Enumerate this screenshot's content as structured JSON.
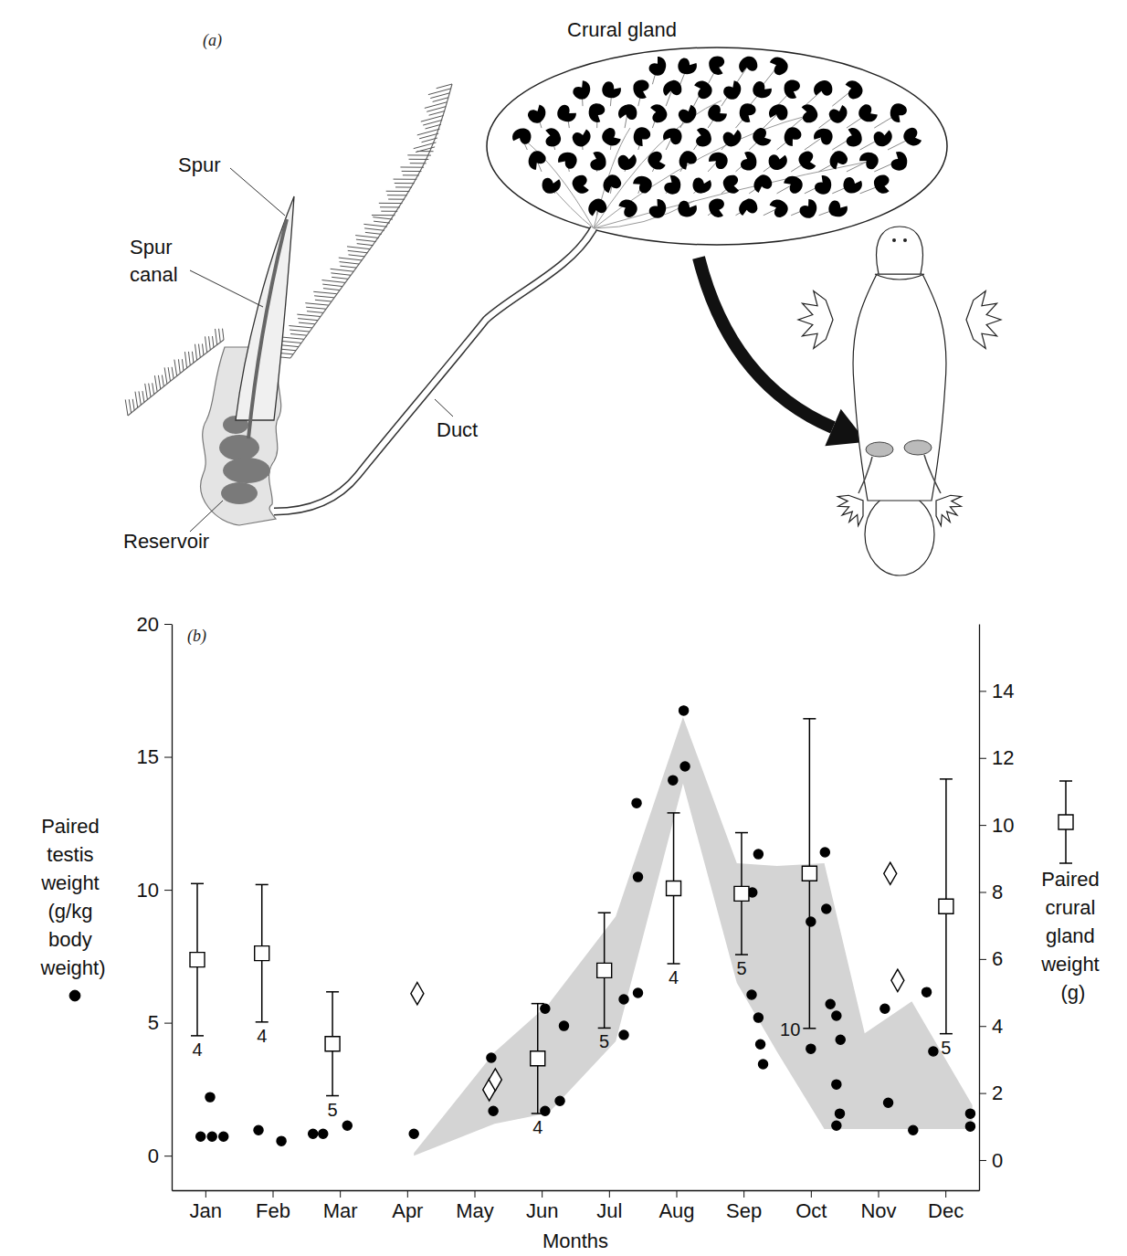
{
  "diagram": {
    "panel_label": "(a)",
    "crural_gland": "Crural gland",
    "spur": "Spur",
    "spur_canal": "Spur canal",
    "duct": "Duct",
    "reservoir": "Reservoir"
  },
  "chart_data": {
    "type": "scatter",
    "panel_label": "(b)",
    "x_label": "Months",
    "y_label": "Paired testis weight (g/kg body weight)",
    "y2_label": "Paired crural gland weight (g)",
    "xlim": [
      0,
      12
    ],
    "xticks": [
      {
        "value": 0.5,
        "label": "Jan"
      },
      {
        "value": 1.5,
        "label": "Feb"
      },
      {
        "value": 2.5,
        "label": "Mar"
      },
      {
        "value": 3.5,
        "label": "Apr"
      },
      {
        "value": 4.5,
        "label": "May"
      },
      {
        "value": 5.5,
        "label": "Jun"
      },
      {
        "value": 6.5,
        "label": "Jul"
      },
      {
        "value": 7.5,
        "label": "Aug"
      },
      {
        "value": 8.5,
        "label": "Sep"
      },
      {
        "value": 9.5,
        "label": "Oct"
      },
      {
        "value": 10.5,
        "label": "Nov"
      },
      {
        "value": 11.5,
        "label": "Dec"
      }
    ],
    "ylim": [
      -1.3,
      20
    ],
    "yticks": [
      0,
      5,
      10,
      15,
      20
    ],
    "y2lim": [
      -0.9,
      16
    ],
    "y2ticks": [
      0,
      2,
      4,
      6,
      8,
      10,
      12,
      14
    ],
    "series": [
      {
        "type": "scatter",
        "marker": "circle",
        "color": "#000000",
        "x": [
          0.43,
          0.57,
          0.6,
          0.77,
          1.29,
          1.63,
          2.1,
          2.25,
          2.61,
          3.6,
          4.75,
          4.78,
          5.55,
          5.55,
          5.77,
          5.83,
          6.72,
          6.72,
          6.91,
          6.93,
          6.93,
          7.45,
          7.61,
          7.63,
          8.62,
          8.63,
          8.72,
          8.72,
          8.75,
          8.79,
          9.5,
          9.5,
          9.71,
          9.73,
          9.79,
          9.88,
          9.88,
          9.88,
          9.93,
          9.94,
          10.6,
          10.65,
          11.02,
          11.22,
          11.32,
          11.87,
          11.87
        ],
        "values": [
          0.72,
          2.2,
          0.72,
          0.72,
          0.96,
          0.55,
          0.82,
          0.82,
          1.13,
          0.82,
          3.68,
          1.68,
          5.53,
          1.68,
          2.06,
          4.88,
          5.88,
          4.54,
          13.26,
          10.48,
          6.12,
          14.12,
          16.74,
          14.64,
          6.05,
          9.9,
          11.34,
          5.19,
          4.19,
          3.44,
          8.8,
          4.02,
          11.41,
          9.28,
          5.7,
          5.26,
          2.68,
          1.13,
          1.58,
          4.36,
          5.53,
          1.99,
          0.96,
          6.15,
          3.92,
          1.58,
          1.1
        ]
      },
      {
        "type": "area",
        "color": "#d4d4d4",
        "x": [
          3.6,
          4.8,
          5.6,
          6.6,
          7.6,
          8.4,
          9.0,
          9.7,
          10.3,
          11.0,
          11.9
        ],
        "lower": [
          0,
          1.2,
          1.6,
          4.3,
          14.0,
          6.5,
          3.9,
          1.0,
          1.0,
          1.0,
          1.0
        ],
        "upper": [
          0.1,
          3.9,
          5.7,
          9.0,
          16.5,
          11.0,
          10.9,
          11.0,
          4.6,
          5.8,
          1.9
        ]
      },
      {
        "type": "scatter",
        "marker": "square",
        "color": "#000000",
        "axis": "y2",
        "x": [
          0.38,
          1.34,
          2.39,
          5.44,
          6.43,
          7.46,
          8.47,
          9.48,
          11.51
        ],
        "values": [
          5.98,
          6.17,
          3.47,
          3.03,
          5.66,
          8.11,
          7.95,
          8.55,
          7.57
        ],
        "errors": [
          2.27,
          2.05,
          1.55,
          1.64,
          1.72,
          2.25,
          1.82,
          4.62,
          3.8
        ],
        "n": [
          4,
          4,
          5,
          4,
          5,
          4,
          5,
          10,
          5
        ]
      },
      {
        "type": "scatter",
        "marker": "diamond",
        "color": "#000000",
        "axis": "y2",
        "x": [
          3.65,
          4.72,
          4.81,
          10.68,
          10.79
        ],
        "values": [
          4.97,
          2.1,
          2.4,
          8.55,
          5.36
        ]
      }
    ]
  }
}
